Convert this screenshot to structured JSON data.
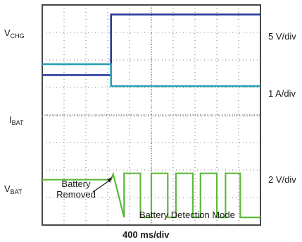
{
  "chart_data": {
    "type": "line",
    "title": "",
    "xlabel": "400 ms/div",
    "time_per_div_ms": 400,
    "divisions": {
      "x": 10,
      "y": 8
    },
    "grid": true,
    "channels": [
      {
        "name": "V_CHG",
        "label_main": "V",
        "label_sub": "CHG",
        "scale": "5 V/div",
        "color": "#2b3a9a",
        "x_ms": [
          0,
          1260,
          1260,
          4000
        ],
        "y_div": [
          5.45,
          5.45,
          7.65,
          7.65
        ]
      },
      {
        "name": "I_BAT",
        "label_main": "I",
        "label_sub": "BAT",
        "scale": "1 A/div",
        "color": "#2aa0b4",
        "x_ms": [
          0,
          1260,
          1260,
          4000
        ],
        "y_div": [
          5.85,
          5.85,
          5.05,
          5.05
        ]
      },
      {
        "name": "V_BAT",
        "label_main": "V",
        "label_sub": "BAT",
        "scale": "2 V/div",
        "color": "#5fb83c",
        "x_ms": [
          0,
          1260,
          1300,
          1500,
          1500,
          1800,
          1800,
          2000,
          2000,
          2300,
          2300,
          2450,
          2450,
          2760,
          2760,
          2900,
          2900,
          3200,
          3200,
          3360,
          3360,
          3630,
          3630,
          4000
        ],
        "y_div": [
          1.65,
          1.65,
          1.85,
          0.28,
          1.88,
          1.88,
          0.28,
          0.28,
          1.88,
          1.88,
          0.28,
          0.28,
          1.88,
          1.88,
          0.28,
          0.28,
          1.88,
          1.88,
          0.28,
          0.28,
          1.88,
          1.88,
          0.28,
          0.28
        ]
      }
    ],
    "annotations": [
      {
        "text_line1": "Battery",
        "text_line2": "Removed"
      },
      {
        "text": "Battery Detection Mode"
      }
    ]
  }
}
